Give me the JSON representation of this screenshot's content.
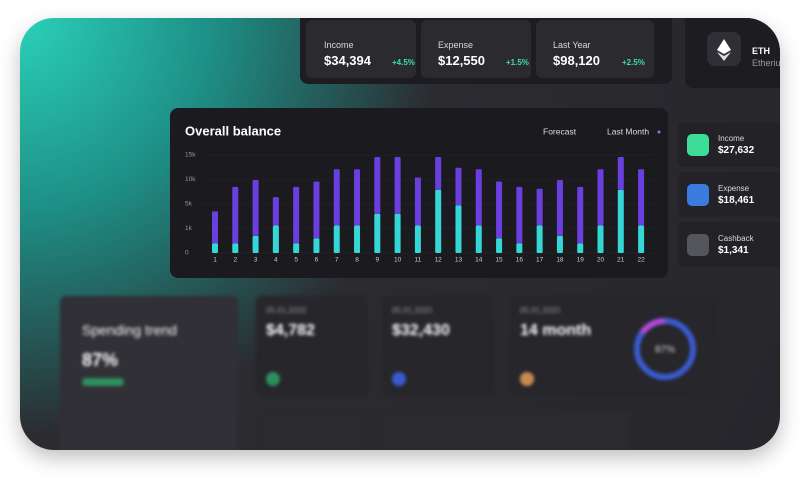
{
  "top_cards": [
    {
      "label": "Income",
      "value": "$34,394",
      "change": "+4.5%"
    },
    {
      "label": "Expense",
      "value": "$12,550",
      "change": "+1.5%"
    },
    {
      "label": "Last Year",
      "value": "$98,120",
      "change": "+2.5%"
    }
  ],
  "coin_card": {
    "symbol": "ETH",
    "name": "Etherium"
  },
  "chart_data": {
    "type": "bar",
    "stacked": true,
    "title": "Overall balance",
    "controls": [
      "Forecast",
      "Last Month"
    ],
    "categories": [
      "1",
      "2",
      "3",
      "4",
      "5",
      "6",
      "7",
      "8",
      "9",
      "10",
      "11",
      "12",
      "13",
      "14",
      "15",
      "16",
      "17",
      "18",
      "19",
      "20",
      "21",
      "22"
    ],
    "series": [
      {
        "color": "#35d6d6",
        "values": [
          400,
          400,
          700,
          1500,
          400,
          600,
          1500,
          1500,
          3400,
          3400,
          1500,
          7900,
          4800,
          1500,
          600,
          400,
          1500,
          700,
          400,
          1500,
          7900,
          1500
        ]
      },
      {
        "color": "#6a3fe0",
        "values": [
          3400,
          8100,
          9200,
          4900,
          8100,
          9000,
          10600,
          10600,
          11200,
          11200,
          8900,
          6700,
          7600,
          10600,
          9000,
          8100,
          6600,
          9200,
          8100,
          10600,
          6700,
          10600
        ]
      }
    ],
    "ylim": [
      0,
      15000
    ],
    "yticks": [
      {
        "value": 0,
        "label": "0"
      },
      {
        "value": 1000,
        "label": "1k"
      },
      {
        "value": 5000,
        "label": "5k"
      },
      {
        "value": 10000,
        "label": "10k"
      },
      {
        "value": 15000,
        "label": "15k"
      }
    ]
  },
  "side_cards": [
    {
      "label": "Income",
      "value": "$27,632"
    },
    {
      "label": "Expense",
      "value": "$18,461"
    },
    {
      "label": "Cashback",
      "value": "$1,341"
    }
  ],
  "bottom_cards": {
    "trend": {
      "title": "Spending trend",
      "value": "87%"
    },
    "stats": [
      {
        "date": "05.01.2020",
        "value": "$4,782"
      },
      {
        "date": "05.01.2020",
        "value": "$32,430"
      },
      {
        "date": "05.01.2020",
        "value": "14 month",
        "ring": "87%"
      }
    ]
  }
}
